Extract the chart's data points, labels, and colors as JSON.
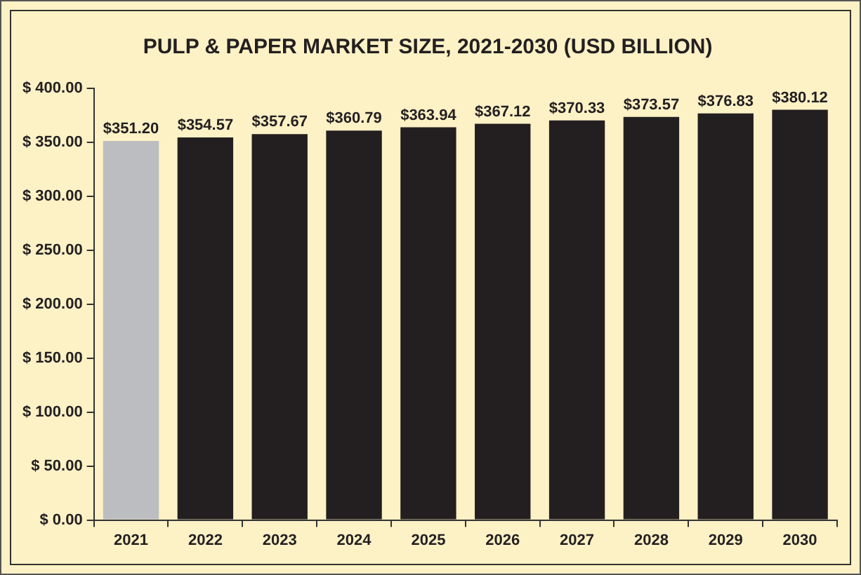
{
  "chart_data": {
    "type": "bar",
    "title": "PULP & PAPER MARKET SIZE, 2021-2030 (USD BILLION)",
    "categories": [
      "2021",
      "2022",
      "2023",
      "2024",
      "2025",
      "2026",
      "2027",
      "2028",
      "2029",
      "2030"
    ],
    "values": [
      351.2,
      354.57,
      357.67,
      360.79,
      363.94,
      367.12,
      370.33,
      373.57,
      376.83,
      380.12
    ],
    "value_labels": [
      "$351.20",
      "$354.57",
      "$357.67",
      "$360.79",
      "$363.94",
      "$367.12",
      "$370.33",
      "$373.57",
      "$376.83",
      "$380.12"
    ],
    "colors": [
      "#bcbdc0",
      "#231f20",
      "#231f20",
      "#231f20",
      "#231f20",
      "#231f20",
      "#231f20",
      "#231f20",
      "#231f20",
      "#231f20"
    ],
    "ylim": [
      0,
      400
    ],
    "yticks": [
      {
        "value": 0,
        "label": "$ 0.00"
      },
      {
        "value": 50,
        "label": "$ 50.00"
      },
      {
        "value": 100,
        "label": "$ 100.00"
      },
      {
        "value": 150,
        "label": "$ 150.00"
      },
      {
        "value": 200,
        "label": "$ 200.00"
      },
      {
        "value": 250,
        "label": "$ 250.00"
      },
      {
        "value": 300,
        "label": "$ 300.00"
      },
      {
        "value": 350,
        "label": "$ 350.00"
      },
      {
        "value": 400,
        "label": "$ 400.00"
      }
    ],
    "grid": false,
    "legend": false
  }
}
